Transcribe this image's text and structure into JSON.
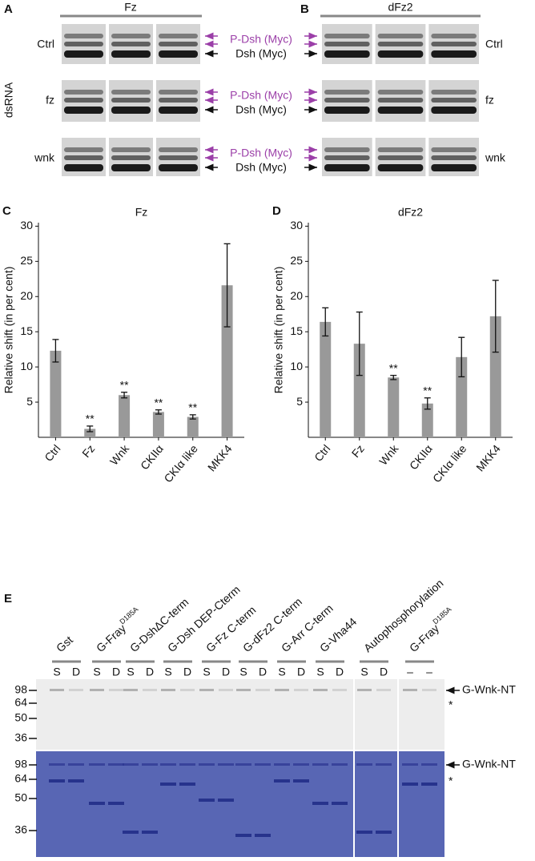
{
  "panel_a": {
    "label": "A",
    "header": "Fz",
    "row_labels": [
      "Ctrl",
      "fz",
      "wnk"
    ],
    "side_label": "dsRNA"
  },
  "markers": {
    "phospho": "P-Dsh (Myc)",
    "base": "Dsh (Myc)"
  },
  "panel_b": {
    "label": "B",
    "header": "dFz2",
    "row_labels": [
      "Ctrl",
      "fz",
      "wnk"
    ]
  },
  "chart_data": [
    {
      "type": "bar",
      "panel_label": "C",
      "title": "Fz",
      "y_label": "Relative shift (in per cent)",
      "categories": [
        "Ctrl",
        "Fz",
        "Wnk",
        "CKIIα",
        "CKIα like",
        "MKK4"
      ],
      "values": [
        12.3,
        1.2,
        6.0,
        3.6,
        2.9,
        21.6
      ],
      "errors": [
        1.6,
        0.4,
        0.4,
        0.3,
        0.3,
        5.9
      ],
      "significance": [
        null,
        "**",
        "**",
        "**",
        "**",
        null
      ],
      "color": "#999999",
      "ylim": [
        0,
        30.5
      ],
      "yticks": [
        5,
        10,
        15,
        20,
        25,
        30
      ]
    },
    {
      "type": "bar",
      "panel_label": "D",
      "title": "dFz2",
      "y_label": "Relative shift (in per cent)",
      "categories": [
        "Ctrl",
        "Fz",
        "Wnk",
        "CKIIα",
        "CKIα like",
        "MKK4"
      ],
      "values": [
        16.4,
        13.3,
        8.5,
        4.8,
        11.4,
        17.2
      ],
      "errors": [
        2.0,
        4.5,
        0.3,
        0.8,
        2.8,
        5.1
      ],
      "significance": [
        null,
        null,
        "**",
        "**",
        null,
        null
      ],
      "color": "#999999",
      "ylim": [
        0,
        30.5
      ],
      "yticks": [
        5,
        10,
        15,
        20,
        25,
        30
      ]
    }
  ],
  "panel_e": {
    "label": "E",
    "lanes": [
      {
        "name": "Gst",
        "sub": [
          "S",
          "D"
        ]
      },
      {
        "name": "G-Fray",
        "sup": "D185A",
        "sub": [
          "S",
          "D"
        ]
      },
      {
        "name": "G-DshΔC-term",
        "sub": [
          "S",
          "D"
        ]
      },
      {
        "name": "G-Dsh DEP-Cterm",
        "sub": [
          "S",
          "D"
        ]
      },
      {
        "name": "G-Fz C-term",
        "sub": [
          "S",
          "D"
        ]
      },
      {
        "name": "G-dFz2 C-term",
        "sub": [
          "S",
          "D"
        ]
      },
      {
        "name": "G-Arr C-term",
        "sub": [
          "S",
          "D"
        ]
      },
      {
        "name": "G-Vha44",
        "sub": [
          "S",
          "D"
        ]
      },
      {
        "name": "Autophosphorylation",
        "sub": [
          "S",
          "D"
        ]
      },
      {
        "name": "G-Fray",
        "sup": "D185A",
        "sub": [
          "–",
          "–"
        ]
      }
    ],
    "mw": [
      98,
      64,
      50,
      36
    ],
    "band_label": "G-Wnk-NT",
    "star": "*"
  }
}
